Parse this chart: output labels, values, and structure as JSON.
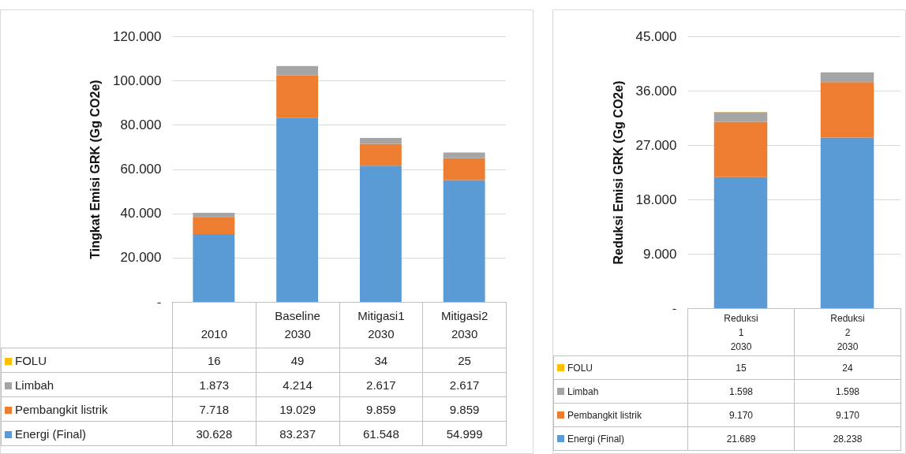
{
  "chart_data": [
    {
      "type": "bar",
      "stacked": true,
      "ylabel": "Tingkat Emisi GRK (Gg CO2e)",
      "categories": [
        "\n2010",
        "Baseline\n2030",
        "Mitigasi1\n2030",
        "Mitigasi2\n2030"
      ],
      "ylim": [
        0,
        120000
      ],
      "yticks": [
        {
          "value": 0,
          "label": "-"
        },
        {
          "value": 20000,
          "label": "20.000"
        },
        {
          "value": 40000,
          "label": "40.000"
        },
        {
          "value": 60000,
          "label": "60.000"
        },
        {
          "value": 80000,
          "label": "80.000"
        },
        {
          "value": 100000,
          "label": "100.000"
        },
        {
          "value": 120000,
          "label": "120.000"
        }
      ],
      "grid": "y",
      "legend": "bottom",
      "series": [
        {
          "name": "Energi (Final)",
          "color": "#5b9bd5",
          "values": [
            30628,
            83237,
            61548,
            54999
          ],
          "value_labels": [
            "30.628",
            "83.237",
            "61.548",
            "54.999"
          ]
        },
        {
          "name": "Pembangkit listrik",
          "color": "#ed7d31",
          "values": [
            7718,
            19029,
            9859,
            9859
          ],
          "value_labels": [
            "7.718",
            "19.029",
            "9.859",
            "9.859"
          ]
        },
        {
          "name": "Limbah",
          "color": "#a5a5a5",
          "values": [
            1873,
            4214,
            2617,
            2617
          ],
          "value_labels": [
            "1.873",
            "4.214",
            "2.617",
            "2.617"
          ]
        },
        {
          "name": "FOLU",
          "color": "#ffc000",
          "values": [
            16,
            49,
            34,
            25
          ],
          "value_labels": [
            "16",
            "49",
            "34",
            "25"
          ]
        }
      ]
    },
    {
      "type": "bar",
      "stacked": true,
      "ylabel": "Reduksi Emisi GRK (Gg CO2e)",
      "categories": [
        "Reduksi\n1\n2030",
        "Reduksi\n2\n2030"
      ],
      "ylim": [
        0,
        45000
      ],
      "yticks": [
        {
          "value": 0,
          "label": "-"
        },
        {
          "value": 9000,
          "label": "9.000"
        },
        {
          "value": 18000,
          "label": "18.000"
        },
        {
          "value": 27000,
          "label": "27.000"
        },
        {
          "value": 36000,
          "label": "36.000"
        },
        {
          "value": 45000,
          "label": "45.000"
        }
      ],
      "grid": "y",
      "legend": "bottom",
      "series": [
        {
          "name": "Energi (Final)",
          "color": "#5b9bd5",
          "values": [
            21689,
            28238
          ],
          "value_labels": [
            "21.689",
            "28.238"
          ]
        },
        {
          "name": "Pembangkit listrik",
          "color": "#ed7d31",
          "values": [
            9170,
            9170
          ],
          "value_labels": [
            "9.170",
            "9.170"
          ]
        },
        {
          "name": "Limbah",
          "color": "#a5a5a5",
          "values": [
            1598,
            1598
          ],
          "value_labels": [
            "1.598",
            "1.598"
          ]
        },
        {
          "name": "FOLU",
          "color": "#ffc000",
          "values": [
            15,
            24
          ],
          "value_labels": [
            "15",
            "24"
          ]
        }
      ]
    }
  ]
}
